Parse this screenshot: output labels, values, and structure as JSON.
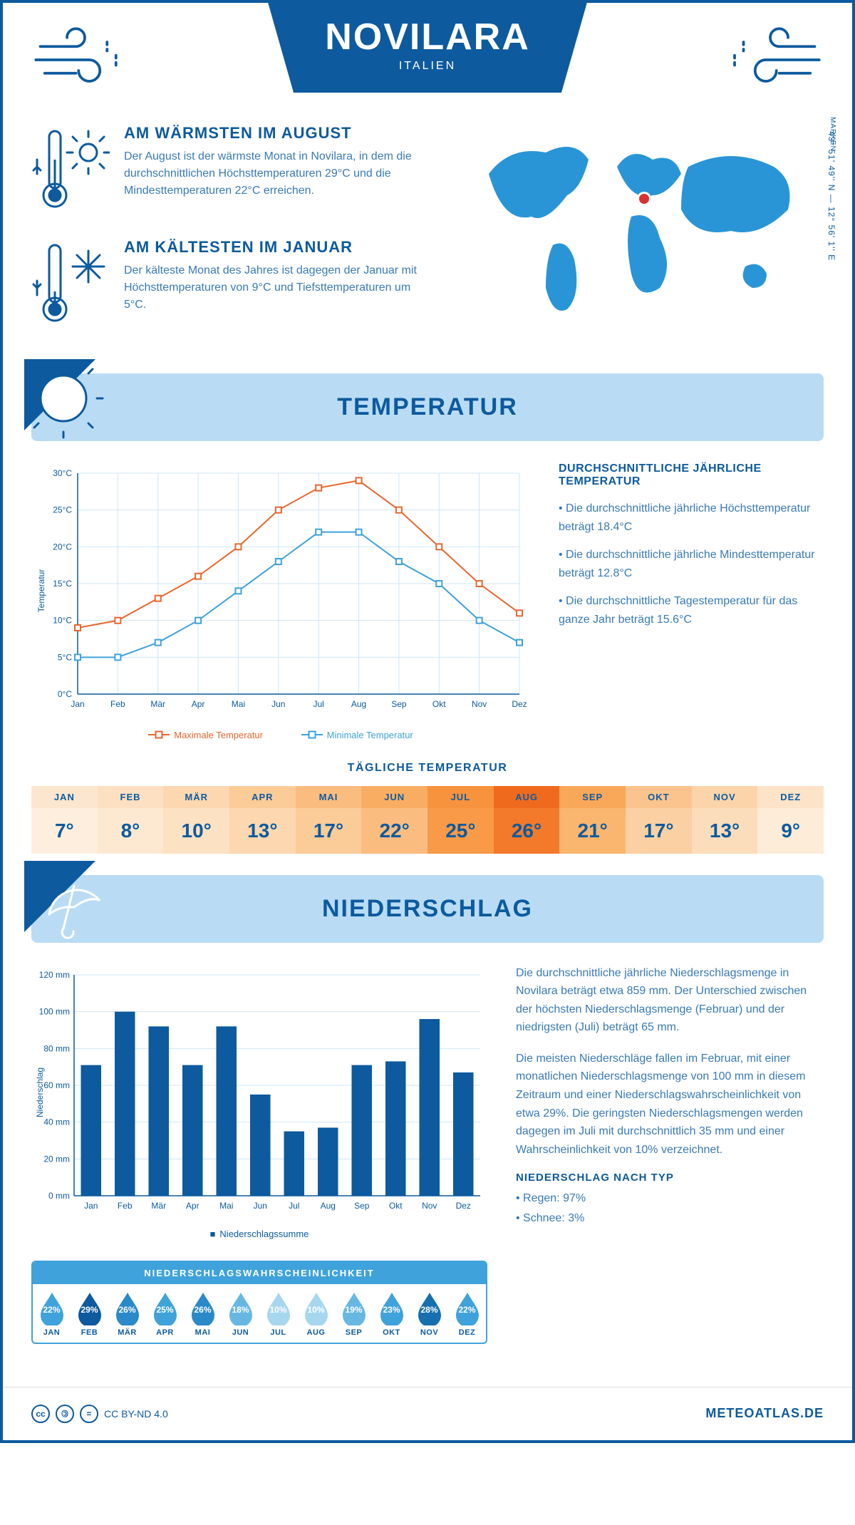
{
  "header": {
    "city": "NOVILARA",
    "country": "ITALIEN",
    "coords": "43° 51' 49'' N — 12° 56' 1'' E",
    "region": "MARKEN"
  },
  "hottest": {
    "title": "AM WÄRMSTEN IM AUGUST",
    "text": "Der August ist der wärmste Monat in Novilara, in dem die durchschnittlichen Höchsttemperaturen 29°C und die Mindesttemperaturen 22°C erreichen."
  },
  "coldest": {
    "title": "AM KÄLTESTEN IM JANUAR",
    "text": "Der kälteste Monat des Jahres ist dagegen der Januar mit Höchsttemperaturen von 9°C und Tiefsttemperaturen um 5°C."
  },
  "temp_section": {
    "title": "TEMPERATUR"
  },
  "temp_chart": {
    "type": "line",
    "months": [
      "Jan",
      "Feb",
      "Mär",
      "Apr",
      "Mai",
      "Jun",
      "Jul",
      "Aug",
      "Sep",
      "Okt",
      "Nov",
      "Dez"
    ],
    "max_values": [
      9,
      10,
      13,
      16,
      20,
      25,
      28,
      29,
      25,
      20,
      15,
      11
    ],
    "min_values": [
      5,
      5,
      7,
      10,
      14,
      18,
      22,
      22,
      18,
      15,
      10,
      7
    ],
    "max_color": "#e8662f",
    "min_color": "#3fa2db",
    "ylim": [
      0,
      30
    ],
    "ytick_step": 5,
    "y_unit": "°C",
    "y_title": "Temperatur",
    "grid_color": "#cfe5f5",
    "axis_color": "#0d5a9e",
    "line_width": 2,
    "marker_size": 4,
    "legend_max": "Maximale Temperatur",
    "legend_min": "Minimale Temperatur"
  },
  "temp_desc": {
    "title": "DURCHSCHNITTLICHE JÄHRLICHE TEMPERATUR",
    "line1": "• Die durchschnittliche jährliche Höchsttemperatur beträgt 18.4°C",
    "line2": "• Die durchschnittliche jährliche Mindesttemperatur beträgt 12.8°C",
    "line3": "• Die durchschnittliche Tagestemperatur für das ganze Jahr beträgt 15.6°C"
  },
  "daily_temp": {
    "title": "TÄGLICHE TEMPERATUR",
    "months": [
      "JAN",
      "FEB",
      "MÄR",
      "APR",
      "MAI",
      "JUN",
      "JUL",
      "AUG",
      "SEP",
      "OKT",
      "NOV",
      "DEZ"
    ],
    "values": [
      "7°",
      "8°",
      "10°",
      "13°",
      "17°",
      "22°",
      "25°",
      "26°",
      "21°",
      "17°",
      "13°",
      "9°"
    ],
    "header_colors": [
      "#fde6cf",
      "#fde0c2",
      "#fcd7b0",
      "#fbcb98",
      "#fabd7f",
      "#f9ad63",
      "#f7933d",
      "#f06a1e",
      "#f9a759",
      "#fbc48e",
      "#fcd4aa",
      "#fde3c8"
    ],
    "value_colors": [
      "#fdeedd",
      "#fde9d2",
      "#fce1c3",
      "#fcd7b0",
      "#fbcb98",
      "#fabd7f",
      "#f89a47",
      "#f37a2b",
      "#fab56f",
      "#fbd0a2",
      "#fcddbb",
      "#fdecd7"
    ]
  },
  "precip_section": {
    "title": "NIEDERSCHLAG"
  },
  "precip_chart": {
    "type": "bar",
    "months": [
      "Jan",
      "Feb",
      "Mär",
      "Apr",
      "Mai",
      "Jun",
      "Jul",
      "Aug",
      "Sep",
      "Okt",
      "Nov",
      "Dez"
    ],
    "values": [
      71,
      100,
      92,
      71,
      92,
      55,
      35,
      37,
      71,
      73,
      96,
      67
    ],
    "bar_color": "#0d5a9e",
    "ylim": [
      0,
      120
    ],
    "ytick_step": 20,
    "y_unit": " mm",
    "y_title": "Niederschlag",
    "grid_color": "#cfe5f5",
    "axis_color": "#0d5a9e",
    "bar_width": 0.6,
    "legend": "Niederschlagssumme"
  },
  "precip_desc": {
    "p1": "Die durchschnittliche jährliche Niederschlagsmenge in Novilara beträgt etwa 859 mm. Der Unterschied zwischen der höchsten Niederschlagsmenge (Februar) und der niedrigsten (Juli) beträgt 65 mm.",
    "p2": "Die meisten Niederschläge fallen im Februar, mit einer monatlichen Niederschlagsmenge von 100 mm in diesem Zeitraum und einer Niederschlagswahrscheinlichkeit von etwa 29%. Die geringsten Niederschlagsmengen werden dagegen im Juli mit durchschnittlich 35 mm und einer Wahrscheinlichkeit von 10% verzeichnet.",
    "type_title": "NIEDERSCHLAG NACH TYP",
    "type1": "• Regen: 97%",
    "type2": "• Schnee: 3%"
  },
  "prob": {
    "title": "NIEDERSCHLAGSWAHRSCHEINLICHKEIT",
    "months": [
      "JAN",
      "FEB",
      "MÄR",
      "APR",
      "MAI",
      "JUN",
      "JUL",
      "AUG",
      "SEP",
      "OKT",
      "NOV",
      "DEZ"
    ],
    "values": [
      "22%",
      "29%",
      "26%",
      "25%",
      "26%",
      "18%",
      "10%",
      "10%",
      "19%",
      "23%",
      "28%",
      "22%"
    ],
    "colors": [
      "#3fa2db",
      "#0d5a9e",
      "#2a89c8",
      "#3fa2db",
      "#2a89c8",
      "#66b8e3",
      "#a7d7ef",
      "#a7d7ef",
      "#66b8e3",
      "#3fa2db",
      "#1670b0",
      "#3fa2db"
    ]
  },
  "footer": {
    "license": "CC BY-ND 4.0",
    "site": "METEOATLAS.DE"
  },
  "colors": {
    "primary": "#0d5a9e",
    "light_blue": "#b9dcf4",
    "map_fill": "#2a95d6",
    "marker": "#d93131"
  }
}
